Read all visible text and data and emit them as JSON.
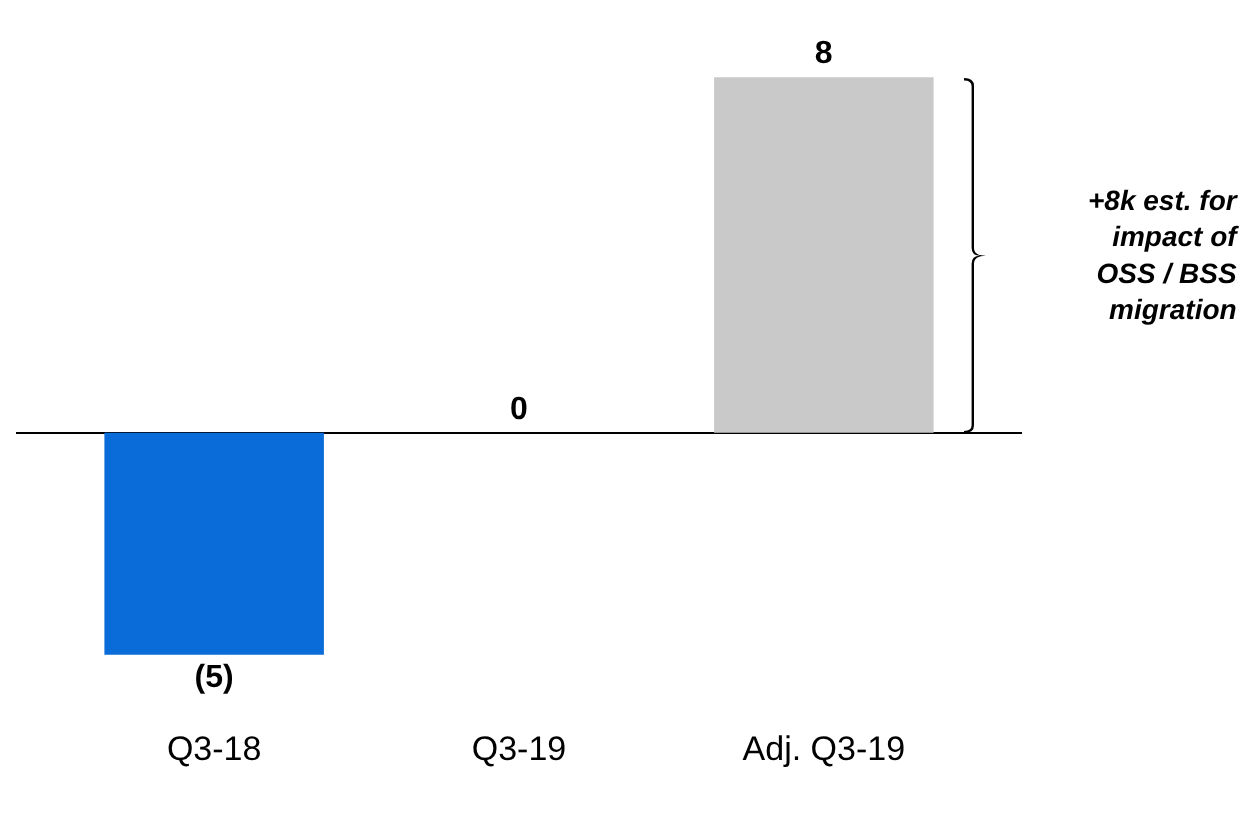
{
  "chart_data": {
    "type": "bar",
    "categories": [
      "Q3-18",
      "Q3-19",
      "Adj. Q3-19"
    ],
    "values": [
      -5,
      0,
      8
    ],
    "colors": [
      "#0a6cd8",
      "#c9c9c9",
      "#c9c9c9"
    ],
    "value_labels": [
      "(5)",
      "0",
      "8"
    ],
    "annotations": [
      "+8k est. for impact of OSS / BSS migration"
    ]
  }
}
